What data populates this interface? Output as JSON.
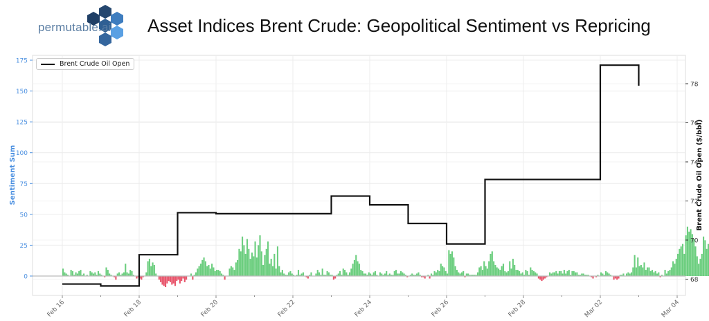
{
  "header": {
    "logo_text": "permutable.ai",
    "title": "Asset Indices Brent Crude: Geopolitical Sentiment vs Repricing",
    "logo_colors": [
      "#1f3f66",
      "#25476f",
      "#2f5f93",
      "#3e7dbf",
      "#5aa0e3",
      "#34669e",
      "#2c5a8c"
    ]
  },
  "colors": {
    "positive_bar": "#6cce7f",
    "negative_bar": "#e8566c",
    "price_line": "#111111",
    "left_axis": "#4a8fe0",
    "grid": "#ececec",
    "zero_line": "#bbbbbb"
  },
  "chart_data": {
    "type": "bar+line",
    "title": "Asset Indices Brent Crude: Geopolitical Sentiment vs Repricing",
    "xlabel": "",
    "ylabel": "Sentiment Sum",
    "ylabel_right": "Brent Crude Oil Open ($/bbl)",
    "x_ticks": [
      "Feb 16",
      "Feb 18",
      "Feb 20",
      "Feb 22",
      "Feb 24",
      "Feb 26",
      "Feb 28",
      "Mar 02",
      "Mar 04"
    ],
    "y_ticks_left": [
      0,
      25,
      50,
      75,
      100,
      125,
      150,
      175
    ],
    "y_ticks_right": [
      68,
      70,
      72,
      74,
      76,
      78
    ],
    "ylim_left": [
      -15.7,
      178.5
    ],
    "ylim_right": [
      67.2,
      79.45
    ],
    "xlim_days": [
      -0.78,
      16.2
    ],
    "grid": true,
    "legend": {
      "position": "upper left",
      "entries": [
        "Brent Crude Oil Open"
      ]
    },
    "sentiment_series": {
      "name": "Sentiment Sum",
      "start": "Feb 16 00:00",
      "interval_hours": 1,
      "values": [
        6,
        3,
        2,
        1,
        0,
        5,
        4,
        1,
        3,
        2,
        4,
        5,
        1,
        2,
        0,
        1,
        0,
        4,
        3,
        2,
        3,
        1,
        4,
        2,
        1,
        0,
        -1,
        7,
        5,
        2,
        1,
        0,
        -1,
        -3,
        2,
        3,
        1,
        2,
        3,
        10,
        3,
        2,
        5,
        4,
        1,
        0,
        -2,
        -1,
        -2,
        -3,
        -1,
        0,
        3,
        12,
        14,
        8,
        11,
        9,
        2,
        0,
        -3,
        -5,
        -7,
        -8,
        -9,
        -6,
        -4,
        -5,
        -7,
        -6,
        -8,
        -4,
        -3,
        -6,
        -4,
        -2,
        -5,
        -3,
        0,
        0,
        2,
        -3,
        1,
        3,
        6,
        8,
        10,
        13,
        15,
        12,
        8,
        9,
        6,
        10,
        7,
        4,
        5,
        5,
        4,
        2,
        1,
        -3,
        0,
        0,
        6,
        8,
        7,
        5,
        11,
        13,
        22,
        20,
        32,
        25,
        18,
        30,
        22,
        14,
        19,
        16,
        28,
        15,
        25,
        33,
        20,
        9,
        17,
        22,
        28,
        10,
        14,
        8,
        18,
        6,
        24,
        8,
        3,
        5,
        2,
        1,
        1,
        3,
        4,
        2,
        1,
        0,
        1,
        5,
        1,
        2,
        3,
        0,
        -1,
        -2,
        1,
        3,
        0,
        0,
        2,
        5,
        3,
        1,
        6,
        1,
        1,
        4,
        3,
        1,
        1,
        -3,
        -2,
        1,
        2,
        4,
        1,
        6,
        5,
        3,
        1,
        3,
        6,
        10,
        13,
        17,
        12,
        10,
        5,
        4,
        2,
        2,
        1,
        3,
        2,
        1,
        3,
        4,
        1,
        0,
        3,
        2,
        1,
        2,
        4,
        1,
        2,
        1,
        1,
        4,
        5,
        2,
        2,
        4,
        3,
        2,
        1,
        -1,
        0,
        1,
        2,
        1,
        1,
        2,
        3,
        1,
        -1,
        -1,
        -2,
        0,
        1,
        -2,
        2,
        1,
        4,
        3,
        5,
        4,
        10,
        8,
        7,
        4,
        2,
        21,
        18,
        20,
        15,
        8,
        5,
        3,
        2,
        3,
        4,
        -1,
        2,
        2,
        1,
        1,
        1,
        1,
        1,
        3,
        7,
        8,
        5,
        12,
        8,
        6,
        12,
        18,
        20,
        12,
        9,
        7,
        6,
        5,
        8,
        10,
        4,
        3,
        4,
        12,
        6,
        14,
        9,
        5,
        5,
        4,
        2,
        3,
        1,
        5,
        4,
        1,
        7,
        5,
        4,
        3,
        2,
        -2,
        -3,
        -4,
        -3,
        -2,
        -1,
        0,
        3,
        2,
        3,
        3,
        4,
        2,
        4,
        4,
        2,
        5,
        2,
        4,
        5,
        1,
        4,
        4,
        3,
        3,
        1,
        1,
        2,
        2,
        1,
        1,
        1,
        0,
        -1,
        -2,
        0,
        -1,
        1,
        0,
        3,
        2,
        1,
        4,
        3,
        2,
        1,
        0,
        -3,
        -2,
        -3,
        -2,
        1,
        1,
        2,
        0,
        2,
        3,
        2,
        3,
        7,
        17,
        7,
        15,
        8,
        9,
        7,
        11,
        5,
        7,
        7,
        4,
        5,
        3,
        4,
        2,
        3,
        -1,
        1,
        0,
        5,
        2,
        4,
        5,
        7,
        12,
        10,
        14,
        18,
        22,
        24,
        26,
        18,
        33,
        40,
        36,
        38,
        34,
        30,
        24,
        16,
        10,
        14,
        18,
        32,
        29,
        22,
        26,
        28,
        18,
        22,
        26,
        34,
        40,
        48,
        48,
        44,
        52,
        44,
        38,
        34,
        24,
        20,
        14,
        24,
        18,
        36,
        40,
        56,
        62,
        53,
        46,
        48,
        45,
        40,
        72,
        150,
        138,
        78,
        104,
        80,
        62,
        94,
        96,
        124,
        129,
        170,
        110,
        115,
        108,
        60,
        90,
        58,
        70,
        62,
        70,
        66,
        40,
        62,
        54,
        36,
        30,
        48,
        38,
        28,
        42,
        42,
        30,
        24,
        37,
        32,
        36,
        35,
        37,
        38,
        37,
        36,
        41,
        52,
        42
      ]
    },
    "price_series": {
      "name": "Brent Crude Oil Open",
      "step": "post",
      "points": [
        {
          "x": "Feb 16",
          "y": 67.75
        },
        {
          "x": "Feb 17",
          "y": 67.65
        },
        {
          "x": "Feb 18",
          "y": 69.25
        },
        {
          "x": "Feb 19",
          "y": 71.4
        },
        {
          "x": "Feb 20",
          "y": 71.35
        },
        {
          "x": "Feb 23",
          "y": 72.25
        },
        {
          "x": "Feb 24",
          "y": 71.8
        },
        {
          "x": "Feb 25",
          "y": 70.85
        },
        {
          "x": "Feb 26",
          "y": 69.8
        },
        {
          "x": "Feb 27",
          "y": 73.1
        },
        {
          "x": "Mar 02",
          "y": 78.95
        },
        {
          "x": "Mar 03",
          "y": 77.9
        }
      ],
      "day_offsets": [
        0,
        1,
        2,
        3,
        4,
        7,
        8,
        9,
        10,
        11,
        14,
        15
      ],
      "values": [
        67.75,
        67.65,
        69.25,
        71.4,
        71.35,
        72.25,
        71.8,
        70.85,
        69.8,
        73.1,
        78.95,
        77.9
      ]
    }
  }
}
